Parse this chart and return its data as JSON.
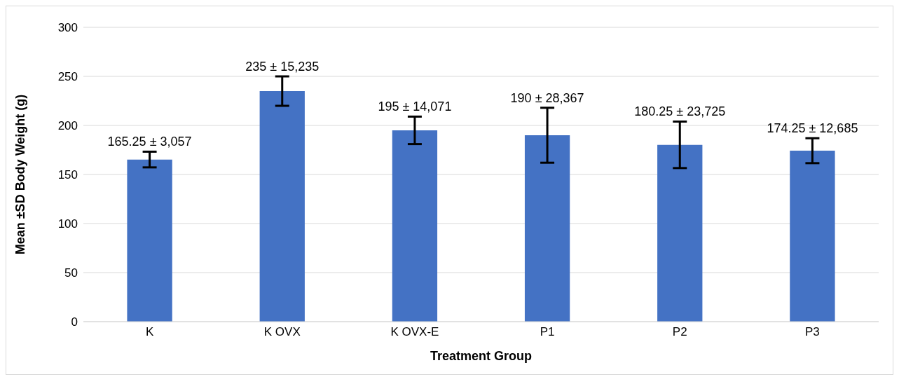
{
  "chart_data": {
    "type": "bar",
    "xlabel": "Treatment Group",
    "ylabel": "Mean ±SD Body Weight (g)",
    "categories": [
      "K",
      "K OVX",
      "K OVX-E",
      "P1",
      "P2",
      "P3"
    ],
    "values": [
      165.25,
      235,
      195,
      190,
      180.25,
      174.25
    ],
    "errors": [
      8,
      15,
      14,
      28,
      23.7,
      12.7
    ],
    "value_labels": [
      "165.25 ± 3,057",
      "235 ± 15,235",
      "195 ± 14,071",
      "190 ± 28,367",
      "180.25 ± 23,725",
      "174.25 ± 12,685"
    ],
    "color": "#4472c4",
    "ylim": [
      0,
      300
    ],
    "yticks": [
      0,
      50,
      100,
      150,
      200,
      250,
      300
    ],
    "grid": "y"
  }
}
